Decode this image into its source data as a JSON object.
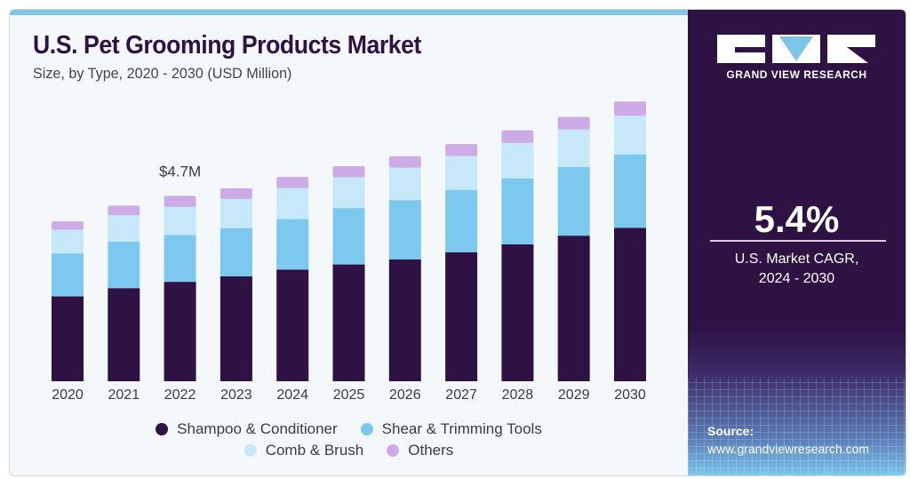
{
  "header": {
    "title": "U.S. Pet Grooming Products Market",
    "subtitle": "Size, by Type, 2020 - 2030 (USD Million)"
  },
  "brand": {
    "name": "GRAND VIEW RESEARCH"
  },
  "stat": {
    "value": "5.4%",
    "label_line1": "U.S. Market CAGR,",
    "label_line2": "2024 - 2030"
  },
  "source": {
    "heading": "Source:",
    "url": "www.grandviewresearch.com"
  },
  "colors": {
    "shampoo": "#2e1244",
    "shear": "#7cc8ee",
    "comb": "#c6e8f8",
    "others": "#cdabe6",
    "panel": "#2e1244"
  },
  "chart_data": {
    "type": "bar",
    "stacked": true,
    "title": "U.S. Pet Grooming Products Market",
    "subtitle": "Size, by Type, 2020 - 2030 (USD Million)",
    "categories": [
      "2020",
      "2021",
      "2022",
      "2023",
      "2024",
      "2025",
      "2026",
      "2027",
      "2028",
      "2029",
      "2030"
    ],
    "series": [
      {
        "name": "Shampoo & Conditioner",
        "color": "#2e1244",
        "values": [
          2.15,
          2.36,
          2.52,
          2.66,
          2.83,
          2.96,
          3.09,
          3.27,
          3.47,
          3.69,
          3.89
        ]
      },
      {
        "name": "Shear & Trimming Tools",
        "color": "#7cc8ee",
        "values": [
          1.09,
          1.18,
          1.19,
          1.22,
          1.28,
          1.43,
          1.5,
          1.58,
          1.67,
          1.74,
          1.86
        ]
      },
      {
        "name": "Comb & Brush",
        "color": "#c6e8f8",
        "values": [
          0.6,
          0.67,
          0.71,
          0.74,
          0.79,
          0.78,
          0.82,
          0.86,
          0.9,
          0.95,
          0.98
        ]
      },
      {
        "name": "Others",
        "color": "#cdabe6",
        "values": [
          0.21,
          0.24,
          0.28,
          0.27,
          0.28,
          0.28,
          0.29,
          0.3,
          0.32,
          0.32,
          0.36
        ]
      }
    ],
    "annotations": [
      {
        "category": "2022",
        "text": "$4.7M"
      }
    ],
    "legend_position": "bottom",
    "grid": false,
    "xlabel": "",
    "ylabel": "",
    "ylim": [
      0,
      7.5
    ]
  }
}
